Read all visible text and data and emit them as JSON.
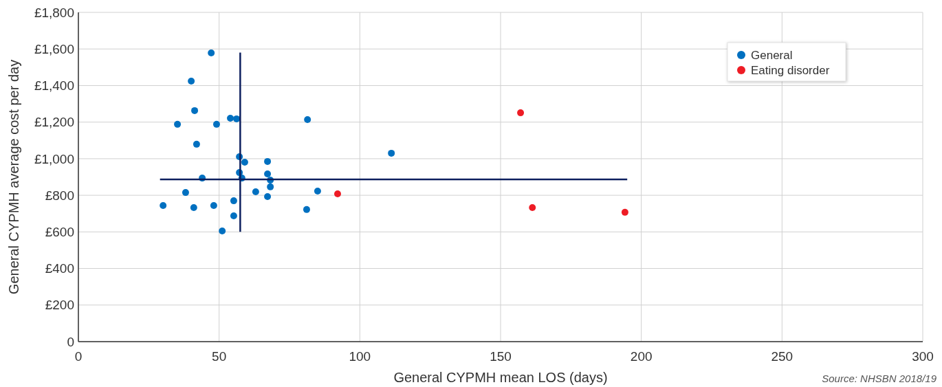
{
  "chart_data": {
    "type": "scatter",
    "xlabel": "General CYPMH mean LOS (days)",
    "ylabel": "General CYPMH average cost per day",
    "annotations": [
      "Source: NHSBN 2018/19"
    ],
    "xlim": [
      0,
      300
    ],
    "xticks": [
      0,
      50,
      100,
      150,
      200,
      250,
      300
    ],
    "ylim": [
      0,
      1800
    ],
    "yticks": [
      0,
      {
        "value": 200,
        "label": "£200"
      },
      {
        "value": 400,
        "label": "£400"
      },
      {
        "value": 600,
        "label": "£600"
      },
      {
        "value": 800,
        "label": "£800"
      },
      {
        "value": 1000,
        "label": "£1,000"
      },
      {
        "value": 1200,
        "label": "£1,200"
      },
      {
        "value": 1400,
        "label": "£1,400"
      },
      {
        "value": 1600,
        "label": "£1,600"
      },
      {
        "value": 1800,
        "label": "£1,800"
      }
    ],
    "grid": true,
    "legend": "top right",
    "marker": "circle",
    "series": [
      {
        "name": "General",
        "color": "#0070c0",
        "x": [
          47.2,
          40.1,
          41.3,
          35.2,
          49.1,
          54,
          56.2,
          42,
          57.2,
          59.1,
          67.2,
          57.2,
          58.1,
          67.2,
          44,
          68.2,
          68.2,
          38.1,
          63,
          67.2,
          55.2,
          30.1,
          41,
          48.1,
          55.2,
          51.1,
          81.4,
          85,
          81.1,
          111.2
        ],
        "values": [
          1578,
          1424,
          1263,
          1188,
          1188,
          1221,
          1218,
          1079,
          1011,
          981,
          985,
          924,
          894,
          917,
          894,
          883,
          846,
          815,
          819,
          793,
          770,
          744,
          733,
          744,
          688,
          605,
          1214,
          823,
          722,
          1030
        ]
      },
      {
        "name": "Eating disorder",
        "color": "#ee1c25",
        "x": [
          92.1,
          157.1,
          161.3,
          194.2
        ],
        "values": [
          808,
          1251,
          733,
          707
        ]
      },
      {
        "type": "line",
        "marker": "none",
        "color": "#0d1f5e",
        "x": [
          57.5,
          57.5
        ],
        "values": [
          600,
          1580
        ]
      },
      {
        "type": "line",
        "marker": "none",
        "color": "#0d1f5e",
        "x": [
          29,
          195
        ],
        "values": [
          887,
          887
        ]
      }
    ]
  }
}
